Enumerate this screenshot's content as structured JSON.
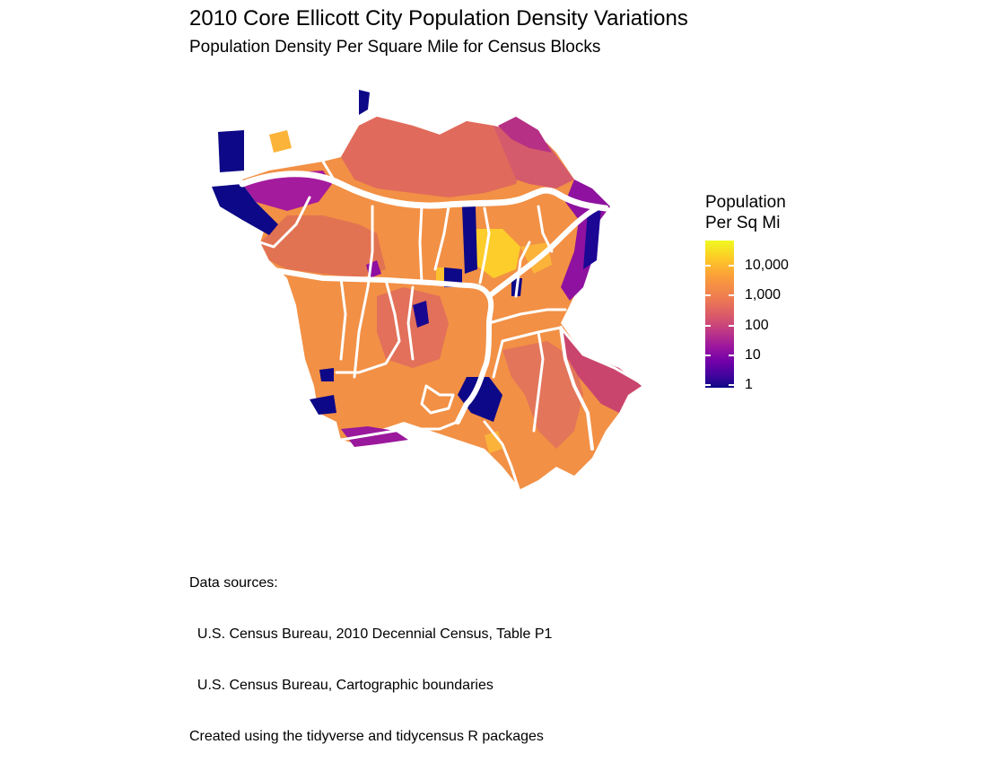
{
  "title": "2010 Core Ellicott City Population Density Variations",
  "subtitle": "Population Density Per Square Mile for Census Blocks",
  "legend": {
    "title_line1": "Population",
    "title_line2": "Per Sq Mi",
    "scale": "log10",
    "colormap": "plasma",
    "labels": [
      "10,000",
      "1,000",
      "100",
      "10",
      "1"
    ],
    "color_high": "#f0f921",
    "color_low": "#0d0887"
  },
  "caption": {
    "line1": "Data sources:",
    "line2": "  U.S. Census Bureau, 2010 Decennial Census, Table P1",
    "line3": "  U.S. Census Bureau, Cartographic boundaries",
    "line4": "Created using the tidyverse and tidycensus R packages"
  },
  "colors": {
    "base": "#f28f4a",
    "mid": "#e0665c",
    "low": "#9c179e",
    "lowest": "#0d0887",
    "high": "#fdca26",
    "roads": "#ffffff"
  }
}
